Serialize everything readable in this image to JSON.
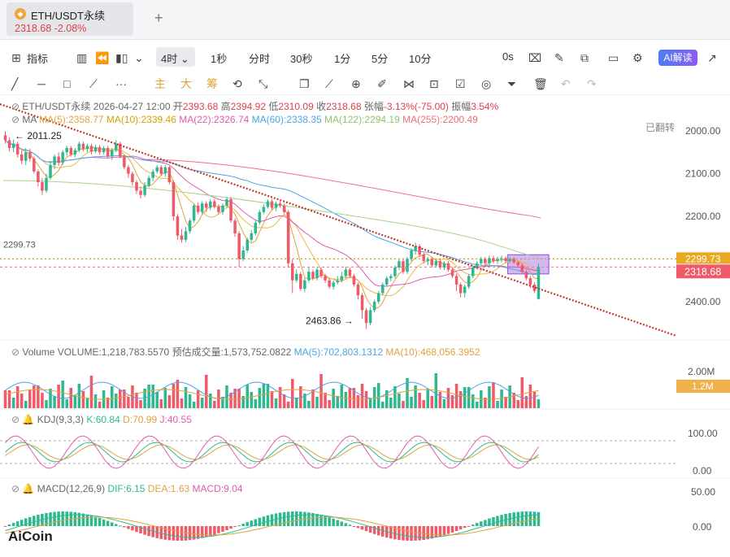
{
  "tab": {
    "name": "ETH/USDT永续",
    "price": "2318.68",
    "change": "-2.08%",
    "add": "+"
  },
  "toolbar": {
    "indicators": "指标",
    "interval_active": "4时",
    "intervals": [
      "1秒",
      "分时",
      "30秒",
      "1分",
      "5分",
      "10分"
    ],
    "right_value": "0s",
    "ai_button": "AI解读"
  },
  "drawing_tools": {
    "main": "主",
    "big": "大",
    "chip": "筹"
  },
  "info_line": {
    "symbol": "ETH/USDT永续",
    "date": "2026-04-27 12:00",
    "open_label": "开",
    "open": "2393.68",
    "high_label": "高",
    "high": "2394.92",
    "low_label": "低",
    "low": "2310.09",
    "close_label": "收",
    "close": "2318.68",
    "chg_label": "张幅",
    "chg": "-3.13%(-75.00)",
    "amp_label": "振幅",
    "amp": "3.54%"
  },
  "ma_line": {
    "label": "MA",
    "ma5": "MA(5):2358.77",
    "ma10": "MA(10):2339.46",
    "ma22": "MA(22):2326.74",
    "ma60": "MA(60):2338.35",
    "ma122": "MA(122):2294.19",
    "ma255": "MA(255):2200.49",
    "flipped": "已翻转"
  },
  "price_axis": {
    "ticks": [
      "2000.00",
      "2100.00",
      "2200.00",
      "2299.73",
      "2400.00"
    ],
    "current": "2318.68",
    "dotted": "2299.73",
    "left_marker": "2299.73"
  },
  "annotations": {
    "high_label": "← 2011.25",
    "low_label": "2463.86 →"
  },
  "volume_line": {
    "label": "Volume",
    "vol": "VOLUME:1,218,783.5570",
    "est": "预估成交量:1,573,752.0822",
    "ma5": "MA(5):702,803.1312",
    "ma10": "MA(10):468,056.3952",
    "axis_top": "2.00M",
    "current": "1.2M"
  },
  "kdj_line": {
    "label": "KDJ(9,3,3)",
    "k": "K:60.84",
    "d": "D:70.99",
    "j": "J:40.55",
    "axis_top": "100.00",
    "axis_bottom": "0.00"
  },
  "macd_line": {
    "label": "MACD(12,26,9)",
    "dif": "DIF:6.15",
    "dea": "DEA:1.63",
    "macd": "MACD:9.04",
    "axis_top": "50.00",
    "axis_bottom": "0.00"
  },
  "logo": "AiCoin",
  "colors": {
    "up": "#2fb890",
    "down": "#ef5a6a",
    "trendline": "#c0392b",
    "ma5": "#e0a33a",
    "ma10": "#e8b84a",
    "ma22": "#e05bb0",
    "ma60": "#49a6e8",
    "ma122": "#a6d18a",
    "ma255": "#ef6f7f",
    "box": "#b07ee8"
  },
  "chart_data": {
    "type": "candlestick",
    "symbol": "ETH/USDT永续",
    "interval": "4时",
    "y_axis_ticks": [
      2000,
      2100,
      2200,
      2299.73,
      2400
    ],
    "y_axis_inverted": true,
    "annotated_extremes": {
      "top": 2011.25,
      "bottom": 2463.86
    },
    "last": {
      "open": 2393.68,
      "high": 2394.92,
      "low": 2310.09,
      "close": 2318.68
    },
    "ma": {
      "MA5": 2358.77,
      "MA10": 2339.46,
      "MA22": 2326.74,
      "MA60": 2338.35,
      "MA122": 2294.19,
      "MA255": 2200.49
    },
    "candles": [
      [
        2010,
        2022,
        2000,
        2030
      ],
      [
        2022,
        2040,
        2015,
        2048
      ],
      [
        2040,
        2030,
        2020,
        2050
      ],
      [
        2030,
        2055,
        2025,
        2062
      ],
      [
        2055,
        2070,
        2045,
        2078
      ],
      [
        2070,
        2050,
        2040,
        2080
      ],
      [
        2050,
        2065,
        2042,
        2072
      ],
      [
        2065,
        2095,
        2060,
        2100
      ],
      [
        2095,
        2120,
        2090,
        2130
      ],
      [
        2120,
        2140,
        2110,
        2150
      ],
      [
        2140,
        2110,
        2100,
        2145
      ],
      [
        2110,
        2080,
        2070,
        2115
      ],
      [
        2080,
        2060,
        2055,
        2090
      ],
      [
        2060,
        2075,
        2050,
        2082
      ],
      [
        2075,
        2050,
        2045,
        2080
      ],
      [
        2050,
        2040,
        2035,
        2058
      ],
      [
        2040,
        2055,
        2035,
        2060
      ],
      [
        2055,
        2045,
        2040,
        2062
      ],
      [
        2045,
        2030,
        2025,
        2050
      ],
      [
        2030,
        2042,
        2025,
        2048
      ],
      [
        2042,
        2035,
        2030,
        2050
      ],
      [
        2035,
        2048,
        2030,
        2055
      ],
      [
        2048,
        2038,
        2032,
        2052
      ],
      [
        2038,
        2050,
        2033,
        2056
      ],
      [
        2050,
        2040,
        2035,
        2055
      ],
      [
        2040,
        2060,
        2035,
        2065
      ],
      [
        2060,
        2045,
        2040,
        2068
      ],
      [
        2045,
        2030,
        2022,
        2050
      ],
      [
        2030,
        2060,
        2025,
        2065
      ],
      [
        2060,
        2085,
        2055,
        2090
      ],
      [
        2085,
        2100,
        2080,
        2110
      ],
      [
        2100,
        2120,
        2095,
        2128
      ],
      [
        2120,
        2140,
        2115,
        2148
      ],
      [
        2140,
        2150,
        2130,
        2158
      ],
      [
        2150,
        2128,
        2120,
        2155
      ],
      [
        2128,
        2110,
        2105,
        2132
      ],
      [
        2110,
        2095,
        2090,
        2118
      ],
      [
        2095,
        2085,
        2080,
        2100
      ],
      [
        2085,
        2100,
        2080,
        2105
      ],
      [
        2100,
        2085,
        2080,
        2108
      ],
      [
        2085,
        2120,
        2082,
        2125
      ],
      [
        2120,
        2200,
        2115,
        2210
      ],
      [
        2200,
        2245,
        2195,
        2255
      ],
      [
        2245,
        2255,
        2230,
        2262
      ],
      [
        2255,
        2235,
        2225,
        2260
      ],
      [
        2235,
        2210,
        2205,
        2240
      ],
      [
        2210,
        2175,
        2170,
        2215
      ],
      [
        2175,
        2190,
        2168,
        2195
      ],
      [
        2190,
        2170,
        2165,
        2195
      ],
      [
        2170,
        2180,
        2165,
        2190
      ],
      [
        2180,
        2165,
        2160,
        2186
      ],
      [
        2165,
        2178,
        2160,
        2182
      ],
      [
        2178,
        2190,
        2172,
        2195
      ],
      [
        2190,
        2175,
        2170,
        2196
      ],
      [
        2175,
        2160,
        2155,
        2180
      ],
      [
        2160,
        2210,
        2155,
        2215
      ],
      [
        2210,
        2240,
        2205,
        2248
      ],
      [
        2240,
        2300,
        2235,
        2318
      ],
      [
        2300,
        2280,
        2270,
        2305
      ],
      [
        2280,
        2255,
        2250,
        2285
      ],
      [
        2255,
        2240,
        2232,
        2260
      ],
      [
        2240,
        2215,
        2210,
        2245
      ],
      [
        2215,
        2190,
        2185,
        2220
      ],
      [
        2190,
        2178,
        2172,
        2195
      ],
      [
        2178,
        2165,
        2160,
        2182
      ],
      [
        2165,
        2180,
        2160,
        2185
      ],
      [
        2180,
        2170,
        2165,
        2188
      ],
      [
        2170,
        2175,
        2165,
        2180
      ],
      [
        2175,
        2190,
        2170,
        2195
      ],
      [
        2190,
        2310,
        2185,
        2320
      ],
      [
        2310,
        2350,
        2300,
        2380
      ],
      [
        2350,
        2335,
        2325,
        2355
      ],
      [
        2335,
        2370,
        2330,
        2375
      ],
      [
        2370,
        2350,
        2345,
        2378
      ],
      [
        2350,
        2330,
        2320,
        2355
      ],
      [
        2330,
        2345,
        2325,
        2350
      ],
      [
        2345,
        2325,
        2320,
        2350
      ],
      [
        2325,
        2340,
        2320,
        2345
      ],
      [
        2340,
        2350,
        2335,
        2356
      ],
      [
        2350,
        2365,
        2345,
        2370
      ],
      [
        2365,
        2355,
        2350,
        2372
      ],
      [
        2355,
        2350,
        2340,
        2360
      ],
      [
        2350,
        2340,
        2330,
        2355
      ],
      [
        2340,
        2325,
        2318,
        2345
      ],
      [
        2325,
        2340,
        2320,
        2345
      ],
      [
        2340,
        2360,
        2335,
        2365
      ],
      [
        2360,
        2385,
        2355,
        2395
      ],
      [
        2385,
        2420,
        2380,
        2440
      ],
      [
        2420,
        2450,
        2415,
        2464
      ],
      [
        2450,
        2420,
        2412,
        2455
      ],
      [
        2420,
        2400,
        2395,
        2425
      ],
      [
        2400,
        2380,
        2375,
        2405
      ],
      [
        2380,
        2360,
        2355,
        2385
      ],
      [
        2360,
        2345,
        2340,
        2365
      ],
      [
        2345,
        2340,
        2335,
        2352
      ],
      [
        2340,
        2320,
        2315,
        2345
      ],
      [
        2320,
        2305,
        2300,
        2325
      ],
      [
        2305,
        2330,
        2300,
        2335
      ],
      [
        2330,
        2300,
        2295,
        2335
      ],
      [
        2300,
        2280,
        2275,
        2305
      ],
      [
        2280,
        2270,
        2262,
        2290
      ],
      [
        2270,
        2290,
        2265,
        2295
      ],
      [
        2290,
        2305,
        2285,
        2310
      ],
      [
        2305,
        2300,
        2295,
        2315
      ],
      [
        2300,
        2315,
        2295,
        2320
      ],
      [
        2315,
        2305,
        2300,
        2320
      ],
      [
        2305,
        2320,
        2300,
        2325
      ],
      [
        2320,
        2310,
        2305,
        2325
      ],
      [
        2310,
        2325,
        2305,
        2330
      ],
      [
        2325,
        2340,
        2320,
        2345
      ],
      [
        2340,
        2360,
        2335,
        2375
      ],
      [
        2360,
        2380,
        2355,
        2390
      ],
      [
        2380,
        2365,
        2360,
        2390
      ],
      [
        2365,
        2340,
        2335,
        2370
      ],
      [
        2340,
        2320,
        2315,
        2345
      ],
      [
        2320,
        2310,
        2305,
        2325
      ],
      [
        2310,
        2300,
        2295,
        2315
      ],
      [
        2300,
        2310,
        2295,
        2318
      ],
      [
        2310,
        2298,
        2292,
        2315
      ],
      [
        2298,
        2305,
        2292,
        2310
      ],
      [
        2305,
        2300,
        2295,
        2312
      ],
      [
        2300,
        2298,
        2292,
        2308
      ],
      [
        2298,
        2305,
        2294,
        2310
      ],
      [
        2305,
        2300,
        2296,
        2310
      ],
      [
        2300,
        2308,
        2296,
        2312
      ],
      [
        2308,
        2315,
        2304,
        2320
      ],
      [
        2315,
        2330,
        2310,
        2335
      ],
      [
        2330,
        2345,
        2325,
        2350
      ],
      [
        2345,
        2360,
        2340,
        2368
      ],
      [
        2360,
        2375,
        2355,
        2380
      ],
      [
        2393.68,
        2318.68,
        2310.09,
        2394.92
      ]
    ],
    "volume_axis": {
      "top": "2.00M",
      "current": 1218783.557
    },
    "kdj": {
      "K": 60.84,
      "D": 70.99,
      "J": 40.55,
      "range": [
        0,
        100
      ]
    },
    "macd": {
      "DIF": 6.15,
      "DEA": 1.63,
      "MACD": 9.04,
      "axis_ticks": [
        0,
        50
      ]
    }
  }
}
